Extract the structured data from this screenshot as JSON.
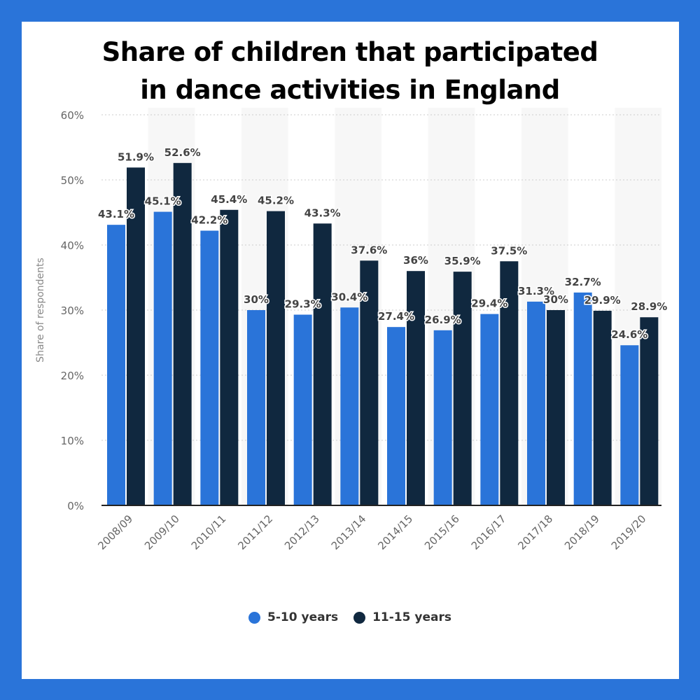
{
  "chart_data": {
    "type": "bar",
    "title": "Share of children that participated in dance activities in England",
    "title_lines": [
      "Share of children that participated",
      "in dance activities in England"
    ],
    "ylabel": "Share of respondents",
    "xlabel": "",
    "ylim": [
      0,
      60
    ],
    "yticks": [
      "0%",
      "10%",
      "20%",
      "30%",
      "40%",
      "50%",
      "60%"
    ],
    "grid": true,
    "legend_position": "bottom",
    "categories": [
      "2008/09",
      "2009/10",
      "2010/11",
      "2011/12",
      "2012/13",
      "2013/14",
      "2014/15",
      "2015/16",
      "2016/17",
      "2017/18",
      "2018/19",
      "2019/20"
    ],
    "series": [
      {
        "name": "5-10 years",
        "color": "#2a74d9",
        "values": [
          43.1,
          45.1,
          42.2,
          30,
          29.3,
          30.4,
          27.4,
          26.9,
          29.4,
          31.3,
          32.7,
          24.6
        ]
      },
      {
        "name": "11-15 years",
        "color": "#10283f",
        "values": [
          51.9,
          52.6,
          45.4,
          45.2,
          43.3,
          37.6,
          36,
          35.9,
          37.5,
          30,
          29.9,
          28.9
        ]
      }
    ]
  },
  "colors": {
    "frame": "#2a74d9",
    "band": "#f7f7f7"
  }
}
